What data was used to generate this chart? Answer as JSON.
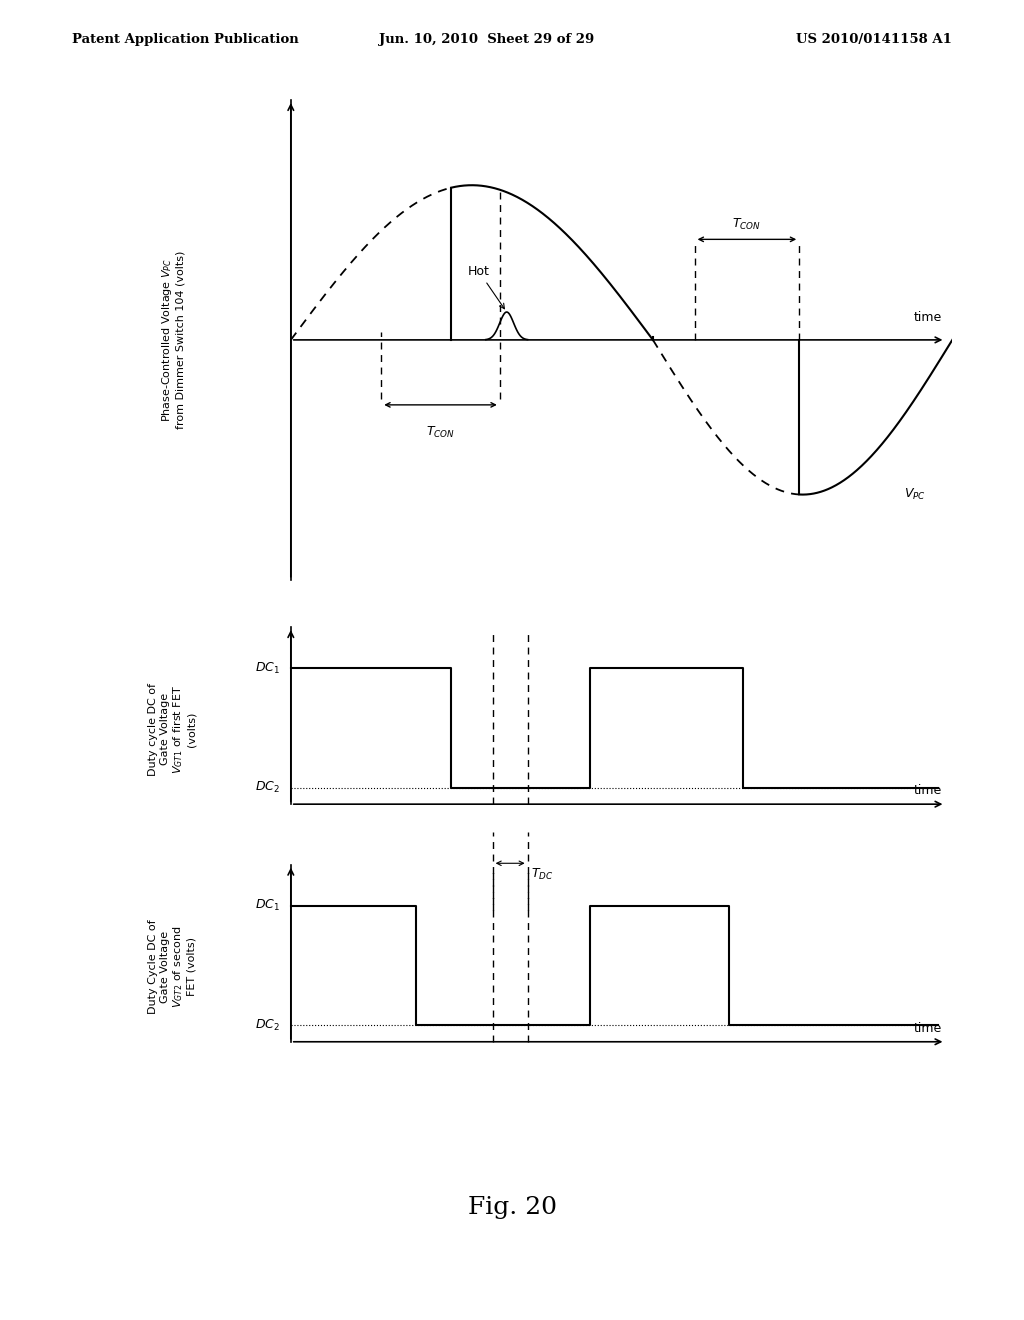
{
  "bg_color": "#ffffff",
  "header_left": "Patent Application Publication",
  "header_mid": "Jun. 10, 2010  Sheet 29 of 29",
  "header_right": "US 2010/0141158 A1",
  "fig_label": "Fig. 20",
  "plot1_ylabel_line1": "Phase-Controlled Voltage V",
  "plot1_ylabel_line2": "from Dimmer Switch 104 (volts)",
  "plot2_ylabel": "Duty cycle DC of\nGate Voltage\nVGT1 of first FET\n(volts)",
  "plot3_ylabel": "Duty Cycle DC of\nGate Voltage\nVGT2 of second\nFET (volts)"
}
